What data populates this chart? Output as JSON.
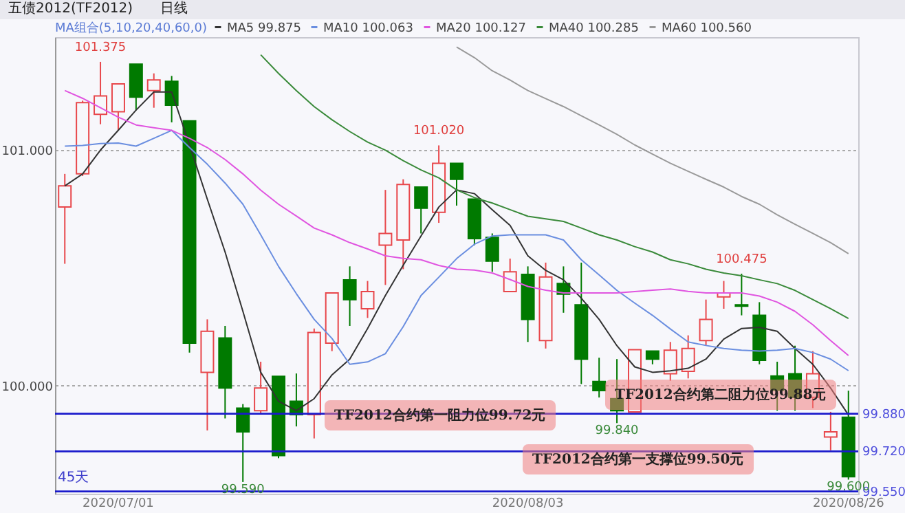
{
  "chart_data": {
    "type": "candlestick",
    "title": "五债2012(TF2012)",
    "subtitle": "日线",
    "legend_title": "MA组合(5,10,20,40,60,0)",
    "categories": [
      null,
      null,
      null,
      "2020/07/01",
      null,
      null,
      null,
      null,
      null,
      null,
      null,
      null,
      null,
      null,
      null,
      null,
      null,
      null,
      null,
      null,
      null,
      null,
      null,
      null,
      null,
      null,
      "2020/08/03",
      null,
      null,
      null,
      null,
      null,
      null,
      null,
      null,
      null,
      null,
      null,
      null,
      null,
      null,
      null,
      null,
      null,
      "2020/08/26"
    ],
    "ohlc": [
      [
        100.758,
        100.899,
        100.517,
        100.848
      ],
      [
        100.899,
        101.21,
        100.89,
        101.202
      ],
      [
        101.152,
        101.375,
        101.11,
        101.23
      ],
      [
        101.163,
        101.281,
        101.084,
        101.281
      ],
      [
        101.365,
        101.365,
        101.169,
        101.225
      ],
      [
        101.253,
        101.326,
        101.18,
        101.298
      ],
      [
        101.292,
        101.315,
        101.118,
        101.191
      ],
      [
        101.124,
        101.124,
        100.14,
        100.18
      ],
      [
        100.056,
        100.281,
        99.809,
        100.23
      ],
      [
        100.202,
        100.253,
        99.86,
        99.989
      ],
      [
        99.904,
        99.921,
        99.59,
        99.803
      ],
      [
        99.893,
        100.101,
        99.88,
        99.989
      ],
      [
        100.039,
        100.039,
        99.691,
        99.702
      ],
      [
        99.933,
        100.051,
        99.826,
        99.876
      ],
      [
        99.876,
        100.242,
        99.775,
        100.225
      ],
      [
        100.18,
        100.393,
        100.146,
        100.393
      ],
      [
        100.449,
        100.506,
        100.253,
        100.365
      ],
      [
        100.326,
        100.444,
        100.287,
        100.399
      ],
      [
        100.596,
        100.831,
        100.427,
        100.646
      ],
      [
        100.618,
        100.876,
        100.494,
        100.854
      ],
      [
        100.843,
        100.843,
        100.646,
        100.753
      ],
      [
        100.736,
        101.02,
        100.691,
        100.944
      ],
      [
        100.944,
        100.944,
        100.764,
        100.876
      ],
      [
        100.792,
        100.792,
        100.596,
        100.624
      ],
      [
        100.629,
        100.646,
        100.483,
        100.528
      ],
      [
        100.399,
        100.539,
        100.399,
        100.483
      ],
      [
        100.472,
        100.506,
        100.185,
        100.281
      ],
      [
        100.191,
        100.522,
        100.157,
        100.461
      ],
      [
        100.433,
        100.506,
        100.309,
        100.388
      ],
      [
        100.343,
        100.522,
        100.006,
        100.112
      ],
      [
        100.017,
        100.118,
        99.949,
        99.978
      ],
      [
        99.944,
        100.112,
        99.84,
        99.893
      ],
      [
        99.888,
        100.152,
        99.888,
        100.152
      ],
      [
        100.146,
        100.146,
        100.09,
        100.112
      ],
      [
        100.05,
        100.185,
        100.02,
        100.15
      ],
      [
        100.06,
        100.213,
        100.03,
        100.157
      ],
      [
        100.191,
        100.365,
        100.17,
        100.281
      ],
      [
        100.376,
        100.444,
        100.326,
        100.393
      ],
      [
        100.343,
        100.475,
        100.298,
        100.337
      ],
      [
        100.298,
        100.354,
        100.09,
        100.107
      ],
      [
        100.04,
        100.101,
        99.893,
        99.98
      ],
      [
        100.05,
        100.169,
        99.893,
        99.95
      ],
      [
        99.95,
        100.146,
        99.904,
        100.05
      ],
      [
        99.781,
        99.888,
        99.725,
        99.803
      ],
      [
        99.865,
        99.978,
        99.6,
        99.612
      ]
    ],
    "colors": [
      "#e8474b",
      "#e8474b",
      "#e8474b",
      "#e8474b",
      "#007a00",
      "#e8474b",
      "#007a00",
      "#007a00",
      "#e8474b",
      "#007a00",
      "#007a00",
      "#e8474b",
      "#007a00",
      "#007a00",
      "#e8474b",
      "#e8474b",
      "#007a00",
      "#e8474b",
      "#e8474b",
      "#e8474b",
      "#007a00",
      "#e8474b",
      "#007a00",
      "#007a00",
      "#007a00",
      "#e8474b",
      "#007a00",
      "#e8474b",
      "#007a00",
      "#007a00",
      "#007a00",
      "#007a00",
      "#e8474b",
      "#007a00",
      "#e8474b",
      "#e8474b",
      "#e8474b",
      "#e8474b",
      "#007a00",
      "#007a00",
      "#007a00",
      "#007a00",
      "#e8474b",
      "#e8474b",
      "#007a00"
    ],
    "series": [
      {
        "name": "MA5 99.875",
        "color": "#333333",
        "type": "line",
        "values": [
          100.848,
          100.899,
          101.0,
          101.084,
          101.17,
          101.247,
          101.247,
          101.022,
          100.792,
          100.567,
          100.315,
          100.056,
          99.933,
          99.893,
          99.944,
          100.045,
          100.112,
          100.242,
          100.382,
          100.511,
          100.635,
          100.758,
          100.831,
          100.815,
          100.747,
          100.68,
          100.551,
          100.489,
          100.449,
          100.371,
          100.281,
          100.169,
          100.079,
          100.056,
          100.062,
          100.073,
          100.112,
          100.197,
          100.242,
          100.247,
          100.23,
          100.157,
          100.09,
          99.989,
          99.875
        ]
      },
      {
        "name": "MA10 100.063",
        "color": "#6a8ee0",
        "type": "line",
        "values": [
          101.017,
          101.02,
          101.028,
          101.03,
          101.017,
          101.05,
          101.084,
          101.011,
          100.94,
          100.86,
          100.77,
          100.64,
          100.506,
          100.39,
          100.281,
          100.2,
          100.09,
          100.1,
          100.135,
          100.25,
          100.382,
          100.46,
          100.539,
          100.6,
          100.635,
          100.64,
          100.64,
          100.64,
          100.618,
          100.534,
          100.47,
          100.404,
          100.35,
          100.298,
          100.24,
          100.185,
          100.17,
          100.157,
          100.15,
          100.146,
          100.15,
          100.157,
          100.14,
          100.112,
          100.063
        ]
      },
      {
        "name": "MA20 100.127",
        "color": "#e055e0",
        "type": "line",
        "values": [
          101.253,
          101.22,
          101.18,
          101.14,
          101.107,
          101.095,
          101.084,
          101.05,
          101.011,
          100.96,
          100.899,
          100.83,
          100.77,
          100.72,
          100.669,
          100.64,
          100.607,
          100.58,
          100.551,
          100.54,
          100.534,
          100.51,
          100.494,
          100.49,
          100.478,
          100.45,
          100.421,
          100.405,
          100.393,
          100.393,
          100.393,
          100.393,
          100.399,
          100.405,
          100.41,
          100.4,
          100.393,
          100.393,
          100.393,
          100.38,
          100.354,
          100.315,
          100.258,
          100.191,
          100.127
        ]
      },
      {
        "name": "MA40 100.285",
        "color": "#3a8a3a",
        "type": "line",
        "values": [
          null,
          null,
          null,
          null,
          null,
          null,
          null,
          null,
          null,
          null,
          null,
          101.405,
          101.326,
          101.253,
          101.185,
          101.129,
          101.079,
          101.034,
          101.0,
          100.955,
          100.916,
          100.882,
          100.831,
          100.798,
          100.775,
          100.747,
          100.719,
          100.708,
          100.697,
          100.669,
          100.64,
          100.618,
          100.59,
          100.567,
          100.534,
          100.517,
          100.494,
          100.478,
          100.466,
          100.449,
          100.433,
          100.404,
          100.365,
          100.326,
          100.285
        ]
      },
      {
        "name": "MA60 100.560",
        "color": "#9a9a9a",
        "type": "line",
        "values": [
          null,
          null,
          null,
          null,
          null,
          null,
          null,
          null,
          null,
          null,
          null,
          null,
          null,
          null,
          null,
          null,
          null,
          null,
          null,
          null,
          null,
          null,
          101.438,
          101.393,
          101.337,
          101.298,
          101.253,
          101.219,
          101.185,
          101.146,
          101.107,
          101.067,
          101.022,
          100.983,
          100.944,
          100.91,
          100.876,
          100.843,
          100.803,
          100.77,
          100.725,
          100.685,
          100.646,
          100.607,
          100.56
        ]
      }
    ],
    "ylim": [
      99.54,
      101.48
    ],
    "yticks": [
      {
        "value": 101,
        "label": "101.000"
      },
      {
        "value": 100,
        "label": "100.000"
      }
    ],
    "grid": "y",
    "legend": "top left",
    "ref_lines": [
      {
        "axis": "y",
        "value": 99.88,
        "label": "99.880",
        "color": "#1a1acc"
      },
      {
        "axis": "y",
        "value": 99.72,
        "label": "99.720",
        "color": "#1a1acc"
      },
      {
        "axis": "y",
        "value": 99.55,
        "label": "99.550",
        "color": "#1a1acc"
      }
    ],
    "annotations": [
      "TF2012合约第一阻力位99.72元",
      "TF2012合约第二阻力位99.88元",
      "TF2012合约第一支撑位99.50元",
      "45天",
      {
        "text": "101.375",
        "y": 101.375
      },
      {
        "text": "101.020",
        "y": 101.02
      },
      {
        "text": "100.475",
        "y": 100.475
      },
      {
        "text": "99.840",
        "y": 99.84
      },
      {
        "text": "99.590",
        "y": 99.59
      },
      {
        "text": "99.600",
        "y": 99.6
      }
    ]
  }
}
